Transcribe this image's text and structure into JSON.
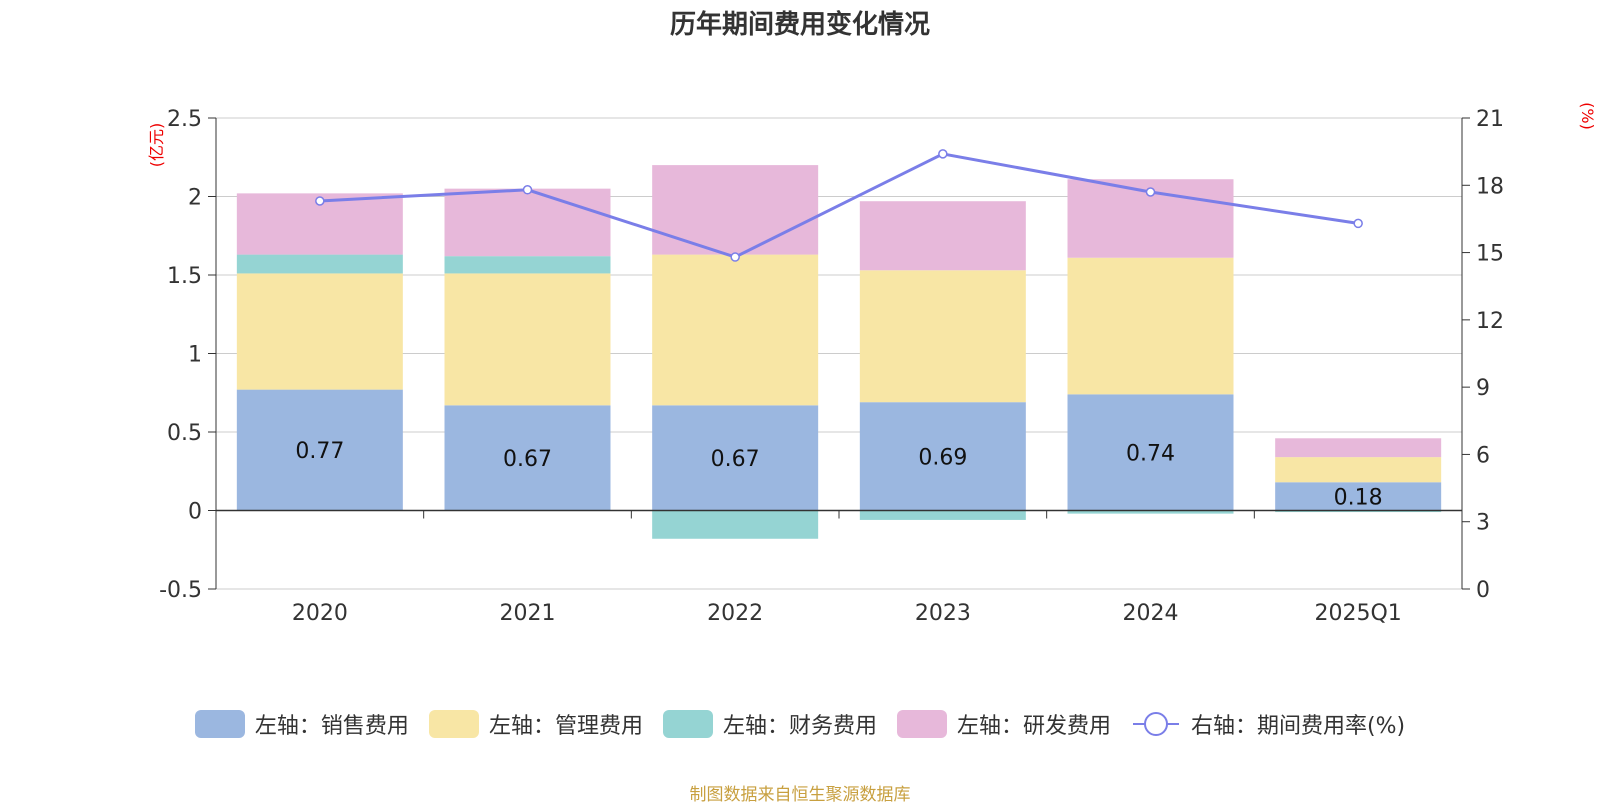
{
  "title": "历年期间费用变化情况",
  "source": "制图数据来自恒生聚源数据库",
  "chart_data": {
    "type": "bar",
    "stacked": true,
    "categories": [
      "2020",
      "2021",
      "2022",
      "2023",
      "2024",
      "2025Q1"
    ],
    "left_axis": {
      "unit": "(亿元)",
      "ylim": [
        -0.5,
        2.5
      ],
      "ticks": [
        "-0.5",
        "0",
        "0.5",
        "1",
        "1.5",
        "2",
        "2.5"
      ]
    },
    "right_axis": {
      "unit": "(%)",
      "ylim": [
        0,
        21
      ],
      "ticks": [
        "0",
        "3",
        "6",
        "9",
        "12",
        "15",
        "18",
        "21"
      ]
    },
    "series": [
      {
        "name": "左轴：销售费用",
        "axis": "left",
        "color": "#9bb7e0",
        "values": [
          0.77,
          0.67,
          0.67,
          0.69,
          0.74,
          0.18
        ],
        "labels": [
          "0.77",
          "0.67",
          "0.67",
          "0.69",
          "0.74",
          "0.18"
        ]
      },
      {
        "name": "左轴：管理费用",
        "axis": "left",
        "color": "#f8e6a5",
        "values": [
          0.74,
          0.84,
          0.96,
          0.84,
          0.87,
          0.16
        ]
      },
      {
        "name": "左轴：财务费用",
        "axis": "left",
        "color": "#95d4d3",
        "values": [
          0.12,
          0.11,
          -0.18,
          -0.06,
          -0.02,
          -0.01
        ]
      },
      {
        "name": "左轴：研发费用",
        "axis": "left",
        "color": "#e7b8da",
        "values": [
          0.39,
          0.43,
          0.57,
          0.44,
          0.5,
          0.12
        ]
      },
      {
        "name": "右轴：期间费用率(%)",
        "axis": "right",
        "type": "line",
        "color": "#7a7ee8",
        "values": [
          17.3,
          17.8,
          14.8,
          19.4,
          17.7,
          16.3
        ]
      }
    ],
    "grid": true,
    "legend_position": "bottom"
  }
}
